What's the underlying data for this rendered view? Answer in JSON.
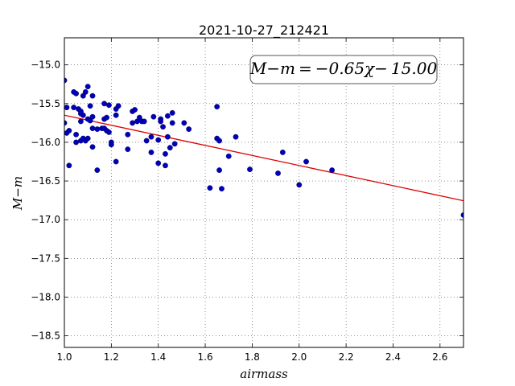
{
  "chart_data": {
    "type": "scatter",
    "title": "2021-10-27_212421",
    "xlabel": "airmass",
    "ylabel": "M−m",
    "xlim": [
      1.0,
      2.7
    ],
    "ylim": [
      -18.65,
      -14.65
    ],
    "y_inverted": false,
    "grid": true,
    "xticks": [
      1.0,
      1.2,
      1.4,
      1.6,
      1.8,
      2.0,
      2.2,
      2.4,
      2.6
    ],
    "xtick_labels": [
      "1.0",
      "1.2",
      "1.4",
      "1.6",
      "1.8",
      "2.0",
      "2.2",
      "2.4",
      "2.6"
    ],
    "yticks": [
      -15.0,
      -15.5,
      -16.0,
      -16.5,
      -17.0,
      -17.5,
      -18.0,
      -18.5
    ],
    "ytick_labels": [
      "−15.0",
      "−15.5",
      "−16.0",
      "−16.5",
      "−17.0",
      "−17.5",
      "−18.0",
      "−18.5"
    ],
    "annotation": "M−m = −0.65χ− 15.00",
    "fit": {
      "slope": -0.65,
      "intercept": -15.0,
      "color": "#dd0000"
    },
    "point_color": "#0000bb",
    "series": [
      {
        "points": [
          [
            1.0,
            -15.2
          ],
          [
            1.0,
            -15.75
          ],
          [
            1.01,
            -15.55
          ],
          [
            1.01,
            -15.88
          ],
          [
            1.02,
            -15.85
          ],
          [
            1.02,
            -16.3
          ],
          [
            1.04,
            -15.55
          ],
          [
            1.04,
            -15.35
          ],
          [
            1.05,
            -15.37
          ],
          [
            1.05,
            -15.9
          ],
          [
            1.05,
            -16.0
          ],
          [
            1.06,
            -15.57
          ],
          [
            1.07,
            -15.6
          ],
          [
            1.07,
            -15.63
          ],
          [
            1.07,
            -15.73
          ],
          [
            1.07,
            -15.98
          ],
          [
            1.08,
            -15.95
          ],
          [
            1.08,
            -15.4
          ],
          [
            1.08,
            -15.65
          ],
          [
            1.09,
            -15.35
          ],
          [
            1.09,
            -15.98
          ],
          [
            1.1,
            -15.28
          ],
          [
            1.1,
            -15.7
          ],
          [
            1.1,
            -15.95
          ],
          [
            1.11,
            -15.72
          ],
          [
            1.11,
            -15.53
          ],
          [
            1.12,
            -15.4
          ],
          [
            1.12,
            -15.82
          ],
          [
            1.12,
            -16.06
          ],
          [
            1.12,
            -15.67
          ],
          [
            1.14,
            -15.83
          ],
          [
            1.14,
            -16.36
          ],
          [
            1.16,
            -15.82
          ],
          [
            1.17,
            -15.5
          ],
          [
            1.17,
            -15.82
          ],
          [
            1.17,
            -15.7
          ],
          [
            1.18,
            -15.85
          ],
          [
            1.18,
            -15.68
          ],
          [
            1.19,
            -15.52
          ],
          [
            1.19,
            -15.87
          ],
          [
            1.2,
            -16.0
          ],
          [
            1.2,
            -16.03
          ],
          [
            1.22,
            -15.65
          ],
          [
            1.22,
            -15.57
          ],
          [
            1.22,
            -16.25
          ],
          [
            1.23,
            -15.53
          ],
          [
            1.27,
            -15.9
          ],
          [
            1.27,
            -16.09
          ],
          [
            1.29,
            -15.6
          ],
          [
            1.29,
            -15.75
          ],
          [
            1.3,
            -15.58
          ],
          [
            1.31,
            -15.73
          ],
          [
            1.32,
            -15.68
          ],
          [
            1.33,
            -15.73
          ],
          [
            1.34,
            -15.73
          ],
          [
            1.35,
            -15.98
          ],
          [
            1.37,
            -15.93
          ],
          [
            1.37,
            -16.13
          ],
          [
            1.38,
            -15.67
          ],
          [
            1.4,
            -16.27
          ],
          [
            1.4,
            -15.97
          ],
          [
            1.41,
            -15.7
          ],
          [
            1.41,
            -15.73
          ],
          [
            1.42,
            -15.8
          ],
          [
            1.43,
            -16.3
          ],
          [
            1.43,
            -16.15
          ],
          [
            1.44,
            -15.93
          ],
          [
            1.44,
            -15.66
          ],
          [
            1.45,
            -16.07
          ],
          [
            1.46,
            -15.75
          ],
          [
            1.46,
            -15.62
          ],
          [
            1.47,
            -16.02
          ],
          [
            1.51,
            -15.75
          ],
          [
            1.53,
            -15.83
          ],
          [
            1.62,
            -16.59
          ],
          [
            1.65,
            -15.54
          ],
          [
            1.65,
            -15.95
          ],
          [
            1.66,
            -15.98
          ],
          [
            1.66,
            -16.36
          ],
          [
            1.67,
            -16.6
          ],
          [
            1.7,
            -16.18
          ],
          [
            1.73,
            -15.93
          ],
          [
            1.79,
            -16.35
          ],
          [
            1.91,
            -16.4
          ],
          [
            1.93,
            -16.13
          ],
          [
            2.0,
            -16.55
          ],
          [
            2.03,
            -16.25
          ],
          [
            2.14,
            -16.36
          ],
          [
            2.7,
            -16.94
          ]
        ]
      }
    ]
  }
}
